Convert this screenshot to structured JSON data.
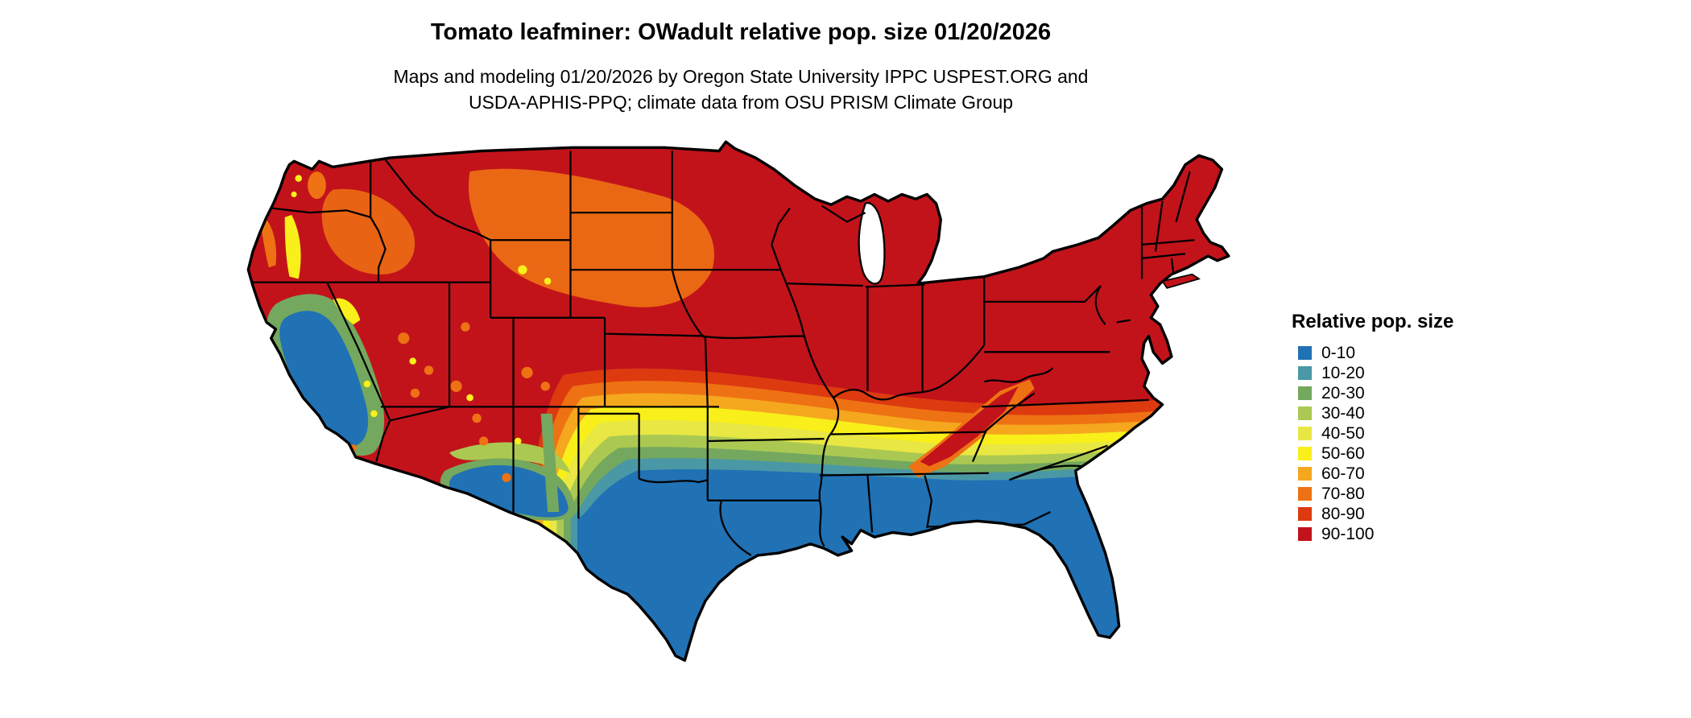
{
  "header": {
    "title": "Tomato leafminer: OWadult relative pop. size 01/20/2026",
    "subtitle_line1": "Maps and modeling 01/20/2026 by Oregon State University IPPC USPEST.ORG and",
    "subtitle_line2": "USDA-APHIS-PPQ; climate data from OSU PRISM Climate Group"
  },
  "legend": {
    "title": "Relative pop. size",
    "classes": [
      {
        "label": "0-10",
        "color": "#2171b5"
      },
      {
        "label": "10-20",
        "color": "#4a98a5"
      },
      {
        "label": "20-30",
        "color": "#74a85e"
      },
      {
        "label": "30-40",
        "color": "#abc952"
      },
      {
        "label": "40-50",
        "color": "#e8e743"
      },
      {
        "label": "50-60",
        "color": "#f8ef1b"
      },
      {
        "label": "60-70",
        "color": "#f5a71e"
      },
      {
        "label": "70-80",
        "color": "#ee7213"
      },
      {
        "label": "80-90",
        "color": "#dd3a10"
      },
      {
        "label": "90-100",
        "color": "#c2131b"
      }
    ]
  },
  "map": {
    "alt": "Raster map of the contiguous United States: red (90-100) across the north grading through orange and yellow bands to blue (0-10) across the south, with mixed mountain-west patches"
  }
}
